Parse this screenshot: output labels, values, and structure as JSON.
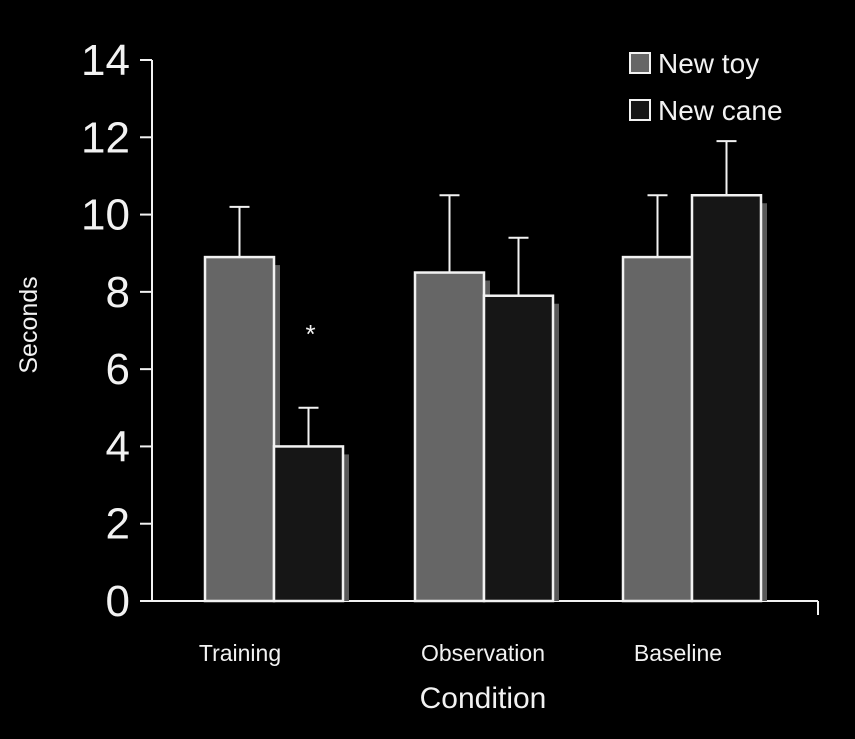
{
  "chart_data": {
    "type": "bar",
    "title": "",
    "xlabel": "Condition",
    "ylabel": "Seconds",
    "ylim": [
      0,
      14
    ],
    "yticks": [
      "0",
      "2",
      "4",
      "6",
      "8",
      "10",
      "12",
      "14"
    ],
    "categories": [
      "Training",
      "Observation",
      "Baseline"
    ],
    "series": [
      {
        "name": "New toy",
        "values": [
          8.9,
          8.5,
          8.9
        ],
        "errors": [
          1.3,
          2.0,
          1.6
        ],
        "color": "#666666"
      },
      {
        "name": "New cane",
        "values": [
          4.0,
          7.9,
          10.5
        ],
        "errors": [
          1.0,
          1.5,
          1.4
        ],
        "color": "#161616"
      }
    ],
    "annotations": [
      {
        "text": "*",
        "category": "Training",
        "series": "New cane"
      }
    ],
    "legend": "top-right",
    "grid": false,
    "colors": {
      "background": "#000000",
      "outline": "#f2f2f2"
    }
  }
}
